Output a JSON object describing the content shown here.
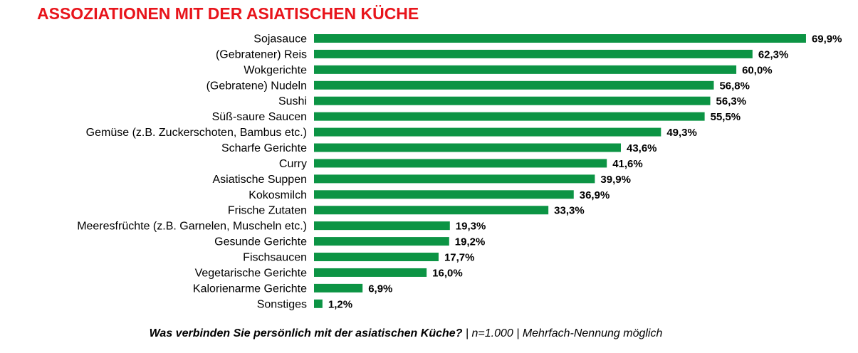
{
  "colors": {
    "title": "#e8141b",
    "bar": "#0c9444"
  },
  "chart_data": {
    "type": "bar",
    "orientation": "horizontal",
    "title": "ASSOZIATIONEN MIT DER ASIATISCHEN KÜCHE",
    "footnote": {
      "question": "Was verbinden Sie persönlich mit der asiatischen Küche?",
      "details": " | n=1.000 | Mehrfach-Nennung möglich"
    },
    "xlim": [
      0,
      70
    ],
    "grid": false,
    "categories": [
      "Sojasauce",
      "(Gebratener) Reis",
      "Wokgerichte",
      "(Gebratene) Nudeln",
      "Sushi",
      "Süß-saure Saucen",
      "Gemüse (z.B. Zuckerschoten, Bambus etc.)",
      "Scharfe Gerichte",
      "Curry",
      "Asiatische Suppen",
      "Kokosmilch",
      "Frische Zutaten",
      "Meeresfrüchte (z.B. Garnelen, Muscheln etc.)",
      "Gesunde Gerichte",
      "Fischsaucen",
      "Vegetarische Gerichte",
      "Kalorienarme Gerichte",
      "Sonstiges"
    ],
    "values": [
      69.9,
      62.3,
      60.0,
      56.8,
      56.3,
      55.5,
      49.3,
      43.6,
      41.6,
      39.9,
      36.9,
      33.3,
      19.3,
      19.2,
      17.7,
      16.0,
      6.9,
      1.2
    ],
    "value_labels": [
      "69,9%",
      "62,3%",
      "60,0%",
      "56,8%",
      "56,3%",
      "55,5%",
      "49,3%",
      "43,6%",
      "41,6%",
      "39,9%",
      "36,9%",
      "33,3%",
      "19,3%",
      "19,2%",
      "17,7%",
      "16,0%",
      "6,9%",
      "1,2%"
    ]
  }
}
